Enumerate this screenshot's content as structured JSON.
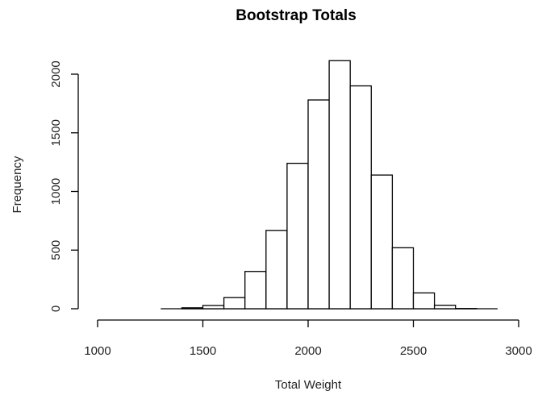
{
  "chart_data": {
    "type": "bar",
    "title": "Bootstrap Totals",
    "xlabel": "Total Weight",
    "ylabel": "Frequency",
    "bins": [
      {
        "from": 1300,
        "to": 1400,
        "value": 0
      },
      {
        "from": 1400,
        "to": 1500,
        "value": 8
      },
      {
        "from": 1500,
        "to": 1600,
        "value": 28
      },
      {
        "from": 1600,
        "to": 1700,
        "value": 95
      },
      {
        "from": 1700,
        "to": 1800,
        "value": 318
      },
      {
        "from": 1800,
        "to": 1900,
        "value": 668
      },
      {
        "from": 1900,
        "to": 2000,
        "value": 1240
      },
      {
        "from": 2000,
        "to": 2100,
        "value": 1780
      },
      {
        "from": 2100,
        "to": 2200,
        "value": 2115
      },
      {
        "from": 2200,
        "to": 2300,
        "value": 1900
      },
      {
        "from": 2300,
        "to": 2400,
        "value": 1140
      },
      {
        "from": 2400,
        "to": 2500,
        "value": 520
      },
      {
        "from": 2500,
        "to": 2600,
        "value": 135
      },
      {
        "from": 2600,
        "to": 2700,
        "value": 30
      },
      {
        "from": 2700,
        "to": 2800,
        "value": 2
      },
      {
        "from": 2800,
        "to": 2900,
        "value": 0
      }
    ],
    "xlim": [
      1000,
      3000
    ],
    "ylim": [
      0,
      2000
    ],
    "x_ticks": [
      1000,
      1500,
      2000,
      2500,
      3000
    ],
    "y_ticks": [
      0,
      500,
      1000,
      1500,
      2000
    ],
    "grid": false,
    "legend": "none"
  }
}
